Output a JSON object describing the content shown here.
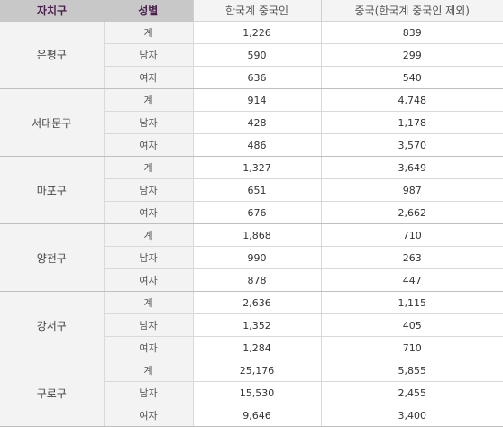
{
  "headers": {
    "district": "자치구",
    "gender": "성별",
    "korean_chinese": "한국계 중국인",
    "chinese": "중국(한국계 중국인 제외)"
  },
  "districts": [
    {
      "name": "은평구",
      "rows": [
        {
          "gender": "계",
          "korean_chinese": "1,226",
          "chinese": "839"
        },
        {
          "gender": "남자",
          "korean_chinese": "590",
          "chinese": "299"
        },
        {
          "gender": "여자",
          "korean_chinese": "636",
          "chinese": "540"
        }
      ]
    },
    {
      "name": "서대문구",
      "rows": [
        {
          "gender": "계",
          "korean_chinese": "914",
          "chinese": "4,748"
        },
        {
          "gender": "남자",
          "korean_chinese": "428",
          "chinese": "1,178"
        },
        {
          "gender": "여자",
          "korean_chinese": "486",
          "chinese": "3,570"
        }
      ]
    },
    {
      "name": "마포구",
      "rows": [
        {
          "gender": "계",
          "korean_chinese": "1,327",
          "chinese": "3,649"
        },
        {
          "gender": "남자",
          "korean_chinese": "651",
          "chinese": "987"
        },
        {
          "gender": "여자",
          "korean_chinese": "676",
          "chinese": "2,662"
        }
      ]
    },
    {
      "name": "양천구",
      "rows": [
        {
          "gender": "계",
          "korean_chinese": "1,868",
          "chinese": "710"
        },
        {
          "gender": "남자",
          "korean_chinese": "990",
          "chinese": "263"
        },
        {
          "gender": "여자",
          "korean_chinese": "878",
          "chinese": "447"
        }
      ]
    },
    {
      "name": "강서구",
      "rows": [
        {
          "gender": "계",
          "korean_chinese": "2,636",
          "chinese": "1,115"
        },
        {
          "gender": "남자",
          "korean_chinese": "1,352",
          "chinese": "405"
        },
        {
          "gender": "여자",
          "korean_chinese": "1,284",
          "chinese": "710"
        }
      ]
    },
    {
      "name": "구로구",
      "rows": [
        {
          "gender": "계",
          "korean_chinese": "25,176",
          "chinese": "5,855"
        },
        {
          "gender": "남자",
          "korean_chinese": "15,530",
          "chinese": "2,455"
        },
        {
          "gender": "여자",
          "korean_chinese": "9,646",
          "chinese": "3,400"
        }
      ]
    }
  ]
}
